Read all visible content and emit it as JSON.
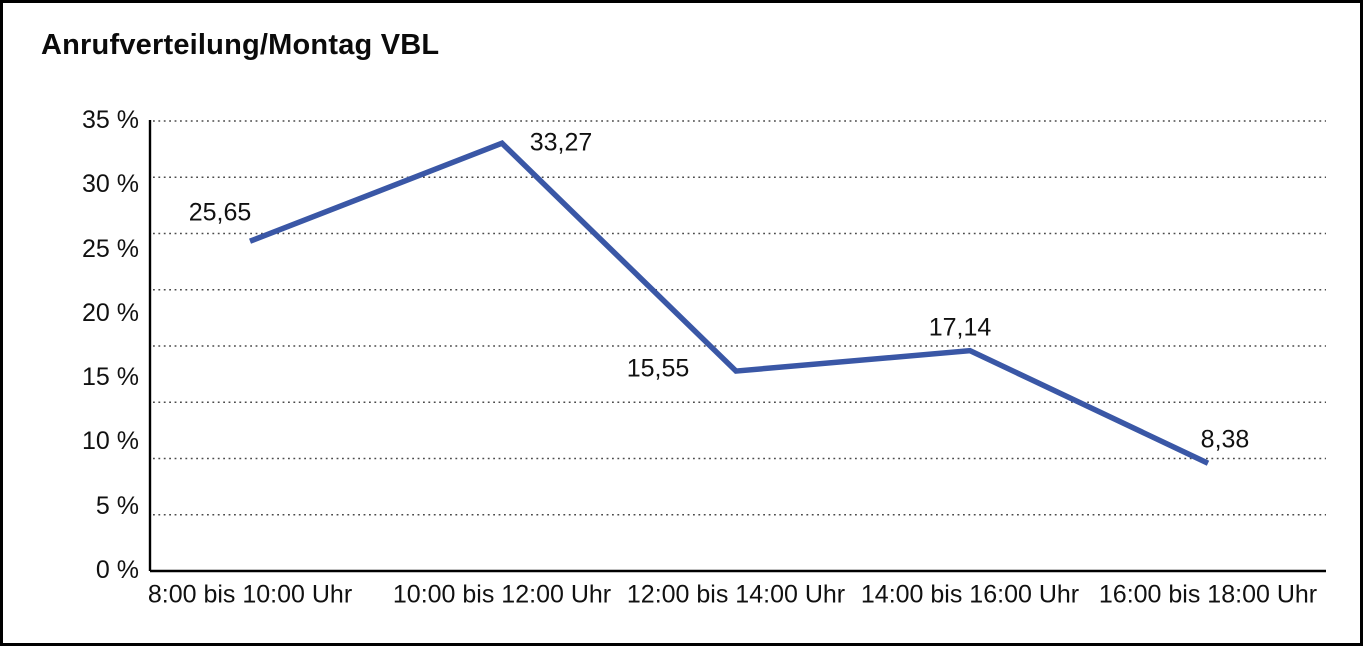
{
  "title": "Anrufverteilung/Montag VBL",
  "colors": {
    "line": "#3A57A6",
    "grid": "#4a4a4a",
    "axis": "#000000",
    "text": "#111111",
    "background": "#ffffff",
    "border": "#000000"
  },
  "chart_data": {
    "type": "line",
    "title": "Anrufverteilung/Montag VBL",
    "categories": [
      "8:00 bis 10:00 Uhr",
      "10:00 bis 12:00 Uhr",
      "12:00 bis 14:00 Uhr",
      "14:00 bis 16:00 Uhr",
      "16:00 bis 18:00 Uhr"
    ],
    "series": [
      {
        "name": "Anrufverteilung Montag VBL",
        "values": [
          25.65,
          33.27,
          15.55,
          17.14,
          8.38
        ],
        "value_labels": [
          "25,65",
          "33,27",
          "15,55",
          "17,14",
          "8,38"
        ],
        "color": "#3A57A6"
      }
    ],
    "xlabel": "",
    "ylabel": "",
    "ylim": [
      0,
      35
    ],
    "ytick_step": 5,
    "ytick_labels": [
      "35 %",
      "30 %",
      "25 %",
      "20 %",
      "15 %",
      "10 %",
      "5 %",
      "0 %"
    ],
    "unit": "%",
    "decimal_separator": ",",
    "grid": "horizontal dotted",
    "legend_position": "none",
    "markers": "none"
  }
}
